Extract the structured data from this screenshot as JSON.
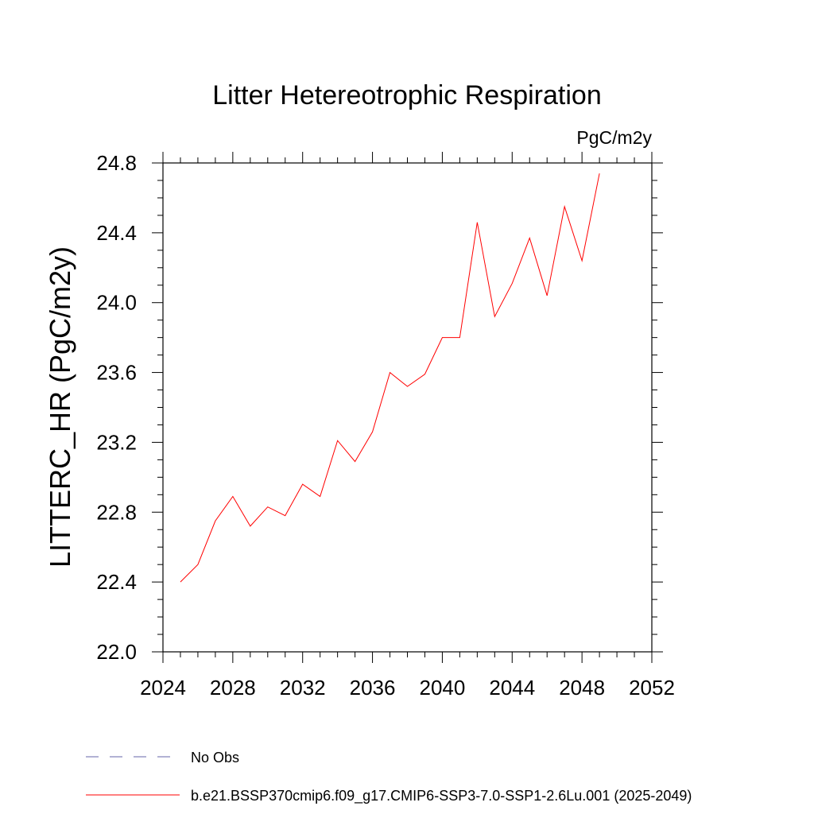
{
  "chart_data": {
    "type": "line",
    "title": "Litter Hetereotrophic Respiration",
    "units_label": "PgC/m2y",
    "ylabel": "LITTERC_HR  (PgC/m2y)",
    "xlabel": "",
    "xlim": [
      2024,
      2052
    ],
    "ylim": [
      22.0,
      24.8
    ],
    "x_ticks": [
      "2024",
      "2028",
      "2032",
      "2036",
      "2040",
      "2044",
      "2048",
      "2052"
    ],
    "y_ticks": [
      "22.0",
      "22.4",
      "22.8",
      "23.2",
      "23.6",
      "24.0",
      "24.4",
      "24.8"
    ],
    "grid": false,
    "legend_position": "bottom-left",
    "series": [
      {
        "name": "b.e21.BSSP370cmip6.f09_g17.CMIP6-SSP3-7.0-SSP1-2.6Lu.001 (2025-2049)",
        "color": "#ff0000",
        "style": "solid",
        "x": [
          2025,
          2026,
          2027,
          2028,
          2029,
          2030,
          2031,
          2032,
          2033,
          2034,
          2035,
          2036,
          2037,
          2038,
          2039,
          2040,
          2041,
          2042,
          2043,
          2044,
          2045,
          2046,
          2047,
          2048,
          2049
        ],
        "y": [
          22.4,
          22.5,
          22.75,
          22.89,
          22.72,
          22.83,
          22.78,
          22.96,
          22.89,
          23.21,
          23.09,
          23.26,
          23.6,
          23.52,
          23.59,
          23.8,
          23.8,
          24.46,
          23.92,
          24.11,
          24.37,
          24.04,
          24.55,
          24.24,
          24.74
        ]
      }
    ],
    "legend": [
      {
        "label": "No Obs",
        "color": "#6666aa",
        "style": "dashed"
      },
      {
        "label": "b.e21.BSSP370cmip6.f09_g17.CMIP6-SSP3-7.0-SSP1-2.6Lu.001 (2025-2049)",
        "color": "#ff0000",
        "style": "solid"
      }
    ]
  }
}
